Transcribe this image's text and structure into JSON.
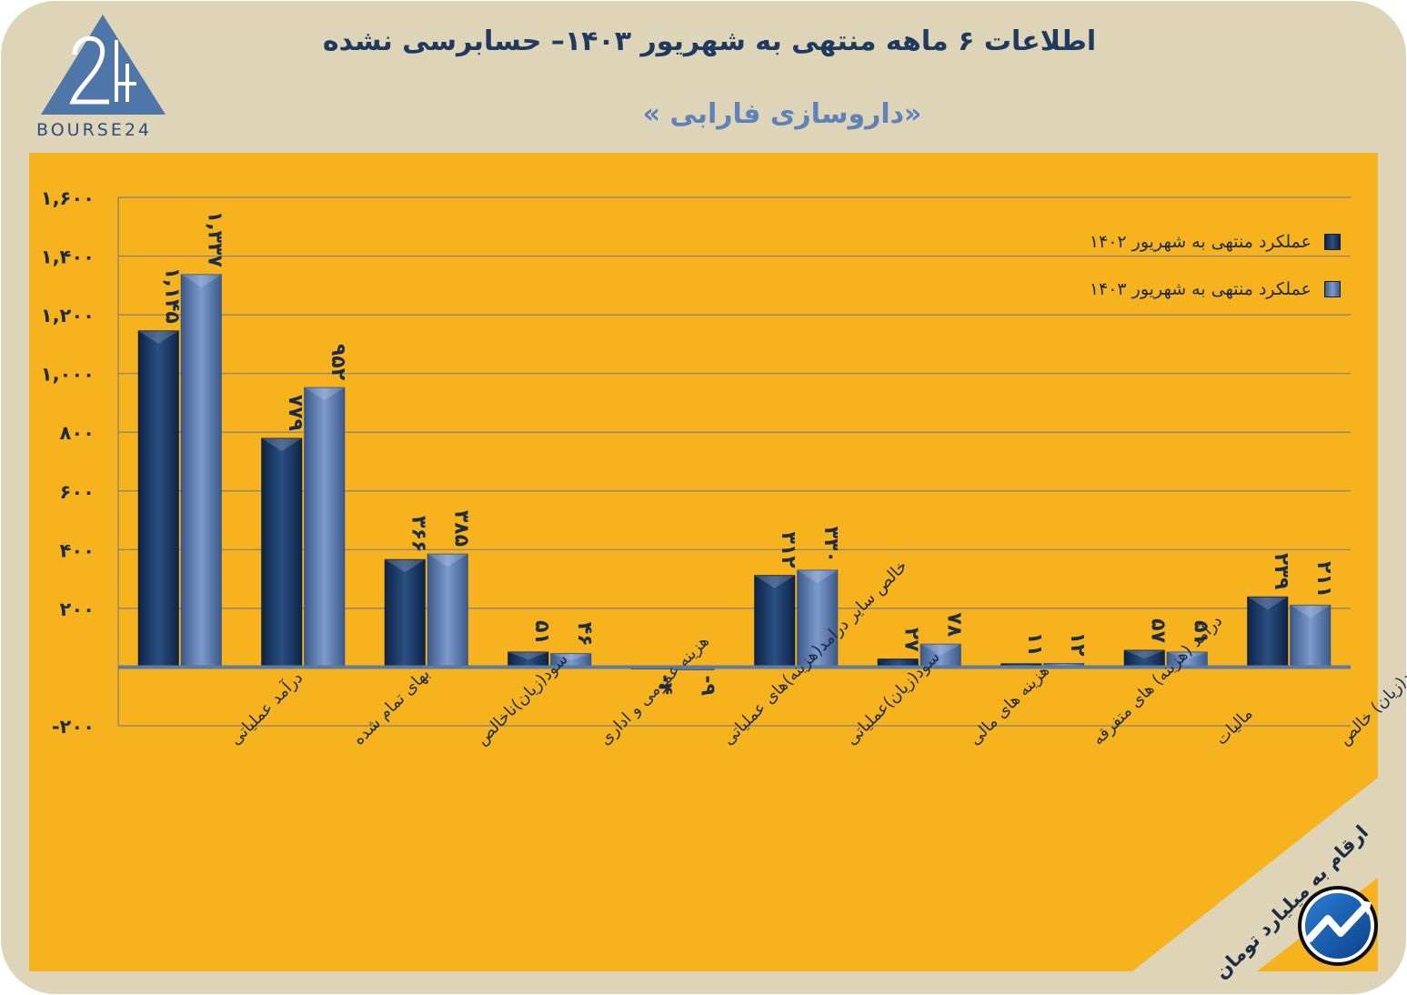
{
  "header": {
    "title": "اطلاعات ۶ ماهه منتهی به شهریور ۱۴۰۳– حسابرسی نشده",
    "subtitle": "«داروسازی فارابی »",
    "logo_text": "BOURSE24"
  },
  "units_note": "ارقام به میلیارد تومان",
  "colors": {
    "frame_bg": "#ded4b8",
    "panel_bg": "#f6b31e",
    "series1": "#1a3a66",
    "series2": "#5f7fb2",
    "grid": "#7f7f7f",
    "title": "#1f3a5f"
  },
  "chart_data": {
    "type": "bar",
    "title": "",
    "xlabel": "",
    "ylabel": "",
    "ylim": [
      -200,
      1600
    ],
    "yticks": [
      -200,
      0,
      200,
      400,
      600,
      800,
      1000,
      1200,
      1400,
      1600
    ],
    "ytick_labels": [
      "-۲۰۰",
      "",
      "۲۰۰",
      "۴۰۰",
      "۶۰۰",
      "۸۰۰",
      "۱,۰۰۰",
      "۱,۲۰۰",
      "۱,۴۰۰",
      "۱,۶۰۰"
    ],
    "grid": true,
    "legend_position": "top-right",
    "categories": [
      "درآمد عملیاتی",
      "بهای تمام شده",
      "سود(زیان)ناخالص",
      "هزینه عمومی و اداری",
      "خالص سایر درامد(هزینه)های عملیاتی",
      "سود(زیان)عملیاتی",
      "هزینه های مالی",
      "درآمد (هزینه) های متفرقه",
      "مالیات",
      "سود(زیان) خالص"
    ],
    "series": [
      {
        "name": "عملکرد منتهی به شهریور ۱۴۰۲",
        "values": [
          1145,
          779,
          366,
          51,
          -4,
          312,
          27,
          11,
          57,
          239
        ],
        "labels": [
          "۱,۱۴۵",
          "۷۷۹",
          "۳۶۶",
          "۵۱",
          "-۴",
          "۳۱۲",
          "۲۷",
          "۱۱",
          "۵۷",
          "۲۳۹"
        ]
      },
      {
        "name": "عملکرد منتهی به شهریور ۱۴۰۳",
        "values": [
          1337,
          952,
          385,
          46,
          -9,
          330,
          78,
          12,
          51,
          211
        ],
        "labels": [
          "۱,۳۳۷",
          "۹۵۲",
          "۳۸۵",
          "۴۶",
          "-۹",
          "۳۳۰",
          "۷۸",
          "۱۲",
          "۵۱",
          "۲۱۱"
        ]
      }
    ]
  }
}
